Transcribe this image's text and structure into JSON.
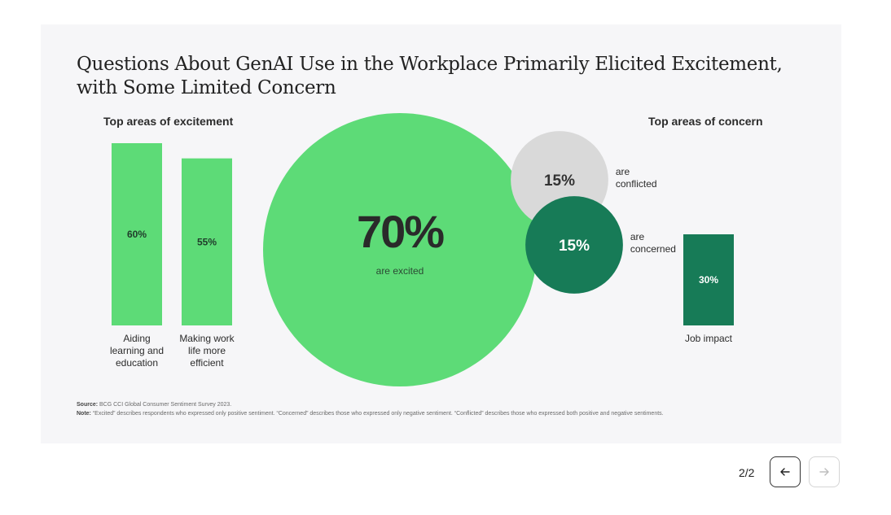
{
  "chart_data": {
    "type": "bar",
    "title": "Questions About GenAI Use in the Workplace Primarily Elicited Excitement, with Some Limited Concern",
    "title_lines": [
      "Questions About GenAI Use in the Workplace Primarily Elicited Excitement,",
      "with Some Limited Concern"
    ],
    "excitement": {
      "heading": "Top areas of excitement",
      "bars": [
        {
          "value": 60,
          "value_label": "60%",
          "label_lines": [
            "Aiding",
            "learning and",
            "education"
          ]
        },
        {
          "value": 55,
          "value_label": "55%",
          "label_lines": [
            "Making work",
            "life more",
            "efficient"
          ]
        }
      ]
    },
    "sentiment": [
      {
        "value": 70,
        "value_label": "70%",
        "caption": "are excited",
        "color": "#5ddb77"
      },
      {
        "value": 15,
        "value_label": "15%",
        "caption_lines": [
          "are",
          "conflicted"
        ],
        "color": "#d9d9d9"
      },
      {
        "value": 15,
        "value_label": "15%",
        "caption_lines": [
          "are",
          "concerned"
        ],
        "color": "#177b57"
      }
    ],
    "concern": {
      "heading": "Top areas of concern",
      "bars": [
        {
          "value": 30,
          "value_label": "30%",
          "label_lines": [
            "Job impact"
          ]
        }
      ]
    },
    "colors": {
      "excitement": "#5ddb77",
      "concern": "#177b57",
      "conflicted": "#d9d9d9"
    }
  },
  "footer": {
    "source_label": "Source:",
    "source_text": "BCG CCI Global Consumer Sentiment Survey 2023.",
    "note_label": "Note:",
    "note_text": "“Excited” describes respondents who expressed only positive sentiment. “Concerned” describes those who expressed only negative sentiment. “Conflicted” describes those who expressed both positive and negative sentiments."
  },
  "pagination": {
    "label": "2/2",
    "prev_icon": "arrow-left-icon",
    "next_icon": "arrow-right-icon"
  }
}
